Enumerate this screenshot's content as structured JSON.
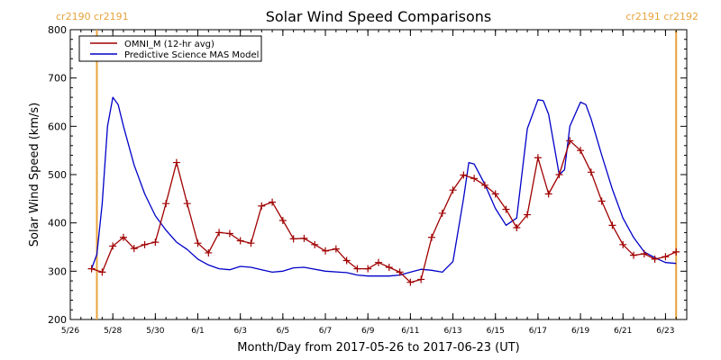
{
  "chart_data": {
    "type": "line",
    "title": "Solar Wind Speed Comparisons",
    "xlabel": "Month/Day from 2017-05-26 to 2017-06-23 (UT)",
    "ylabel": "Solar Wind Speed (km/s)",
    "xlim": [
      "2017-05-26",
      "2017-06-24"
    ],
    "ylim": [
      200,
      800
    ],
    "y_ticks": [
      200,
      300,
      400,
      500,
      600,
      700,
      800
    ],
    "x_ticks": [
      {
        "date": "2017-05-26",
        "label": "5/26"
      },
      {
        "date": "2017-05-28",
        "label": "5/28"
      },
      {
        "date": "2017-05-30",
        "label": "5/30"
      },
      {
        "date": "2017-06-01",
        "label": "6/1"
      },
      {
        "date": "2017-06-03",
        "label": "6/3"
      },
      {
        "date": "2017-06-05",
        "label": "6/5"
      },
      {
        "date": "2017-06-07",
        "label": "6/7"
      },
      {
        "date": "2017-06-09",
        "label": "6/9"
      },
      {
        "date": "2017-06-11",
        "label": "6/11"
      },
      {
        "date": "2017-06-13",
        "label": "6/13"
      },
      {
        "date": "2017-06-15",
        "label": "6/15"
      },
      {
        "date": "2017-06-17",
        "label": "6/17"
      },
      {
        "date": "2017-06-19",
        "label": "6/19"
      },
      {
        "date": "2017-06-21",
        "label": "6/21"
      },
      {
        "date": "2017-06-23",
        "label": "6/23"
      }
    ],
    "legend_placement": "top-left",
    "grid": false,
    "carrington_markers": [
      {
        "date": "2017-05-27 06:00",
        "label": "cr2190 cr2191",
        "label_side": "left",
        "color": "#E8A33C"
      },
      {
        "date": "2017-06-23 12:00",
        "label": "cr2191 cr2192",
        "label_side": "right",
        "color": "#E8A33C"
      }
    ],
    "series": [
      {
        "name": "OMNI_M (12-hr avg)",
        "color": "#A00000",
        "marker": "plus",
        "points": [
          [
            "2017-05-27 00:00",
            305
          ],
          [
            "2017-05-27 12:00",
            298
          ],
          [
            "2017-05-28 00:00",
            352
          ],
          [
            "2017-05-28 12:00",
            370
          ],
          [
            "2017-05-29 00:00",
            347
          ],
          [
            "2017-05-29 12:00",
            355
          ],
          [
            "2017-05-30 00:00",
            360
          ],
          [
            "2017-05-30 12:00",
            440
          ],
          [
            "2017-05-31 00:00",
            525
          ],
          [
            "2017-05-31 12:00",
            440
          ],
          [
            "2017-06-01 00:00",
            358
          ],
          [
            "2017-06-01 12:00",
            338
          ],
          [
            "2017-06-02 00:00",
            380
          ],
          [
            "2017-06-02 12:00",
            378
          ],
          [
            "2017-06-03 00:00",
            363
          ],
          [
            "2017-06-03 12:00",
            358
          ],
          [
            "2017-06-04 00:00",
            435
          ],
          [
            "2017-06-04 12:00",
            443
          ],
          [
            "2017-06-05 00:00",
            405
          ],
          [
            "2017-06-05 12:00",
            367
          ],
          [
            "2017-06-06 00:00",
            368
          ],
          [
            "2017-06-06 12:00",
            355
          ],
          [
            "2017-06-07 00:00",
            342
          ],
          [
            "2017-06-07 12:00",
            346
          ],
          [
            "2017-06-08 00:00",
            322
          ],
          [
            "2017-06-08 12:00",
            305
          ],
          [
            "2017-06-09 00:00",
            305
          ],
          [
            "2017-06-09 12:00",
            318
          ],
          [
            "2017-06-10 00:00",
            308
          ],
          [
            "2017-06-10 12:00",
            298
          ],
          [
            "2017-06-11 00:00",
            277
          ],
          [
            "2017-06-11 12:00",
            283
          ],
          [
            "2017-06-12 00:00",
            370
          ],
          [
            "2017-06-12 12:00",
            420
          ],
          [
            "2017-06-13 00:00",
            468
          ],
          [
            "2017-06-13 12:00",
            499
          ],
          [
            "2017-06-14 00:00",
            492
          ],
          [
            "2017-06-14 12:00",
            478
          ],
          [
            "2017-06-15 00:00",
            460
          ],
          [
            "2017-06-15 12:00",
            428
          ],
          [
            "2017-06-16 00:00",
            390
          ],
          [
            "2017-06-16 12:00",
            417
          ],
          [
            "2017-06-17 00:00",
            535
          ],
          [
            "2017-06-17 12:00",
            460
          ],
          [
            "2017-06-18 00:00",
            500
          ],
          [
            "2017-06-18 12:00",
            570
          ],
          [
            "2017-06-19 00:00",
            550
          ],
          [
            "2017-06-19 12:00",
            505
          ],
          [
            "2017-06-20 00:00",
            445
          ],
          [
            "2017-06-20 12:00",
            395
          ],
          [
            "2017-06-21 00:00",
            355
          ],
          [
            "2017-06-21 12:00",
            333
          ],
          [
            "2017-06-22 00:00",
            336
          ],
          [
            "2017-06-22 12:00",
            325
          ],
          [
            "2017-06-23 00:00",
            330
          ],
          [
            "2017-06-23 12:00",
            340
          ]
        ]
      },
      {
        "name": "Predictive Science MAS Model",
        "color": "#0000C8",
        "marker": "none",
        "points": [
          [
            "2017-05-27 00:00",
            305
          ],
          [
            "2017-05-27 06:00",
            335
          ],
          [
            "2017-05-27 12:00",
            440
          ],
          [
            "2017-05-27 18:00",
            600
          ],
          [
            "2017-05-28 00:00",
            660
          ],
          [
            "2017-05-28 06:00",
            645
          ],
          [
            "2017-05-28 12:00",
            600
          ],
          [
            "2017-05-29 00:00",
            520
          ],
          [
            "2017-05-29 12:00",
            460
          ],
          [
            "2017-05-30 00:00",
            415
          ],
          [
            "2017-05-30 12:00",
            385
          ],
          [
            "2017-05-31 00:00",
            360
          ],
          [
            "2017-05-31 12:00",
            345
          ],
          [
            "2017-06-01 00:00",
            325
          ],
          [
            "2017-06-01 12:00",
            313
          ],
          [
            "2017-06-02 00:00",
            305
          ],
          [
            "2017-06-02 12:00",
            303
          ],
          [
            "2017-06-03 00:00",
            310
          ],
          [
            "2017-06-03 12:00",
            308
          ],
          [
            "2017-06-04 00:00",
            303
          ],
          [
            "2017-06-04 12:00",
            298
          ],
          [
            "2017-06-05 00:00",
            300
          ],
          [
            "2017-06-05 12:00",
            307
          ],
          [
            "2017-06-06 00:00",
            308
          ],
          [
            "2017-06-07 00:00",
            300
          ],
          [
            "2017-06-08 00:00",
            297
          ],
          [
            "2017-06-08 12:00",
            292
          ],
          [
            "2017-06-09 00:00",
            290
          ],
          [
            "2017-06-10 00:00",
            290
          ],
          [
            "2017-06-10 12:00",
            292
          ],
          [
            "2017-06-11 00:00",
            298
          ],
          [
            "2017-06-11 12:00",
            304
          ],
          [
            "2017-06-12 00:00",
            302
          ],
          [
            "2017-06-12 12:00",
            298
          ],
          [
            "2017-06-13 00:00",
            320
          ],
          [
            "2017-06-13 12:00",
            450
          ],
          [
            "2017-06-13 18:00",
            525
          ],
          [
            "2017-06-14 00:00",
            522
          ],
          [
            "2017-06-14 12:00",
            480
          ],
          [
            "2017-06-15 00:00",
            430
          ],
          [
            "2017-06-15 12:00",
            395
          ],
          [
            "2017-06-16 00:00",
            410
          ],
          [
            "2017-06-16 12:00",
            595
          ],
          [
            "2017-06-17 00:00",
            655
          ],
          [
            "2017-06-17 06:00",
            653
          ],
          [
            "2017-06-17 12:00",
            625
          ],
          [
            "2017-06-18 00:00",
            500
          ],
          [
            "2017-06-18 06:00",
            510
          ],
          [
            "2017-06-18 12:00",
            600
          ],
          [
            "2017-06-19 00:00",
            650
          ],
          [
            "2017-06-19 06:00",
            645
          ],
          [
            "2017-06-19 12:00",
            615
          ],
          [
            "2017-06-20 00:00",
            540
          ],
          [
            "2017-06-20 12:00",
            470
          ],
          [
            "2017-06-21 00:00",
            410
          ],
          [
            "2017-06-21 12:00",
            370
          ],
          [
            "2017-06-22 00:00",
            340
          ],
          [
            "2017-06-22 12:00",
            328
          ],
          [
            "2017-06-23 00:00",
            318
          ],
          [
            "2017-06-23 12:00",
            316
          ]
        ]
      }
    ]
  }
}
